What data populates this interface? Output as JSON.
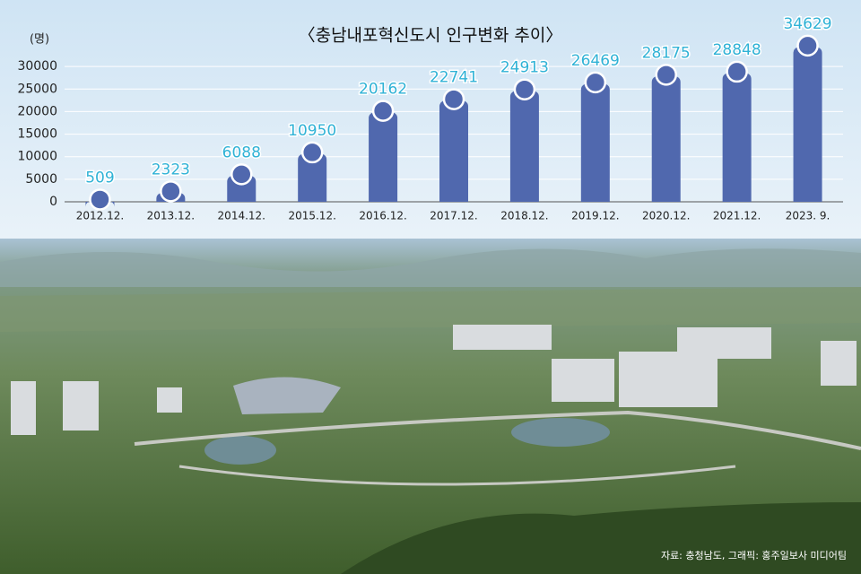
{
  "chart_data": {
    "type": "bar",
    "title": "〈충남내포혁신도시 인구변화 추이〉",
    "y_label": "(명)",
    "categories": [
      "2012.12.",
      "2013.12.",
      "2014.12.",
      "2015.12.",
      "2016.12.",
      "2017.12.",
      "2018.12.",
      "2019.12.",
      "2020.12.",
      "2021.12.",
      "2023. 9."
    ],
    "values": [
      509,
      2323,
      6088,
      10950,
      20162,
      22741,
      24913,
      26469,
      28175,
      28848,
      34629
    ],
    "color": "#5068ae",
    "ylim": [
      0,
      35000
    ],
    "yticks": [
      0,
      5000,
      10000,
      15000,
      20000,
      25000,
      30000
    ],
    "grid": true,
    "source": "자료: 충청남도, 그래픽: 홍주일보사 미디어팀"
  }
}
